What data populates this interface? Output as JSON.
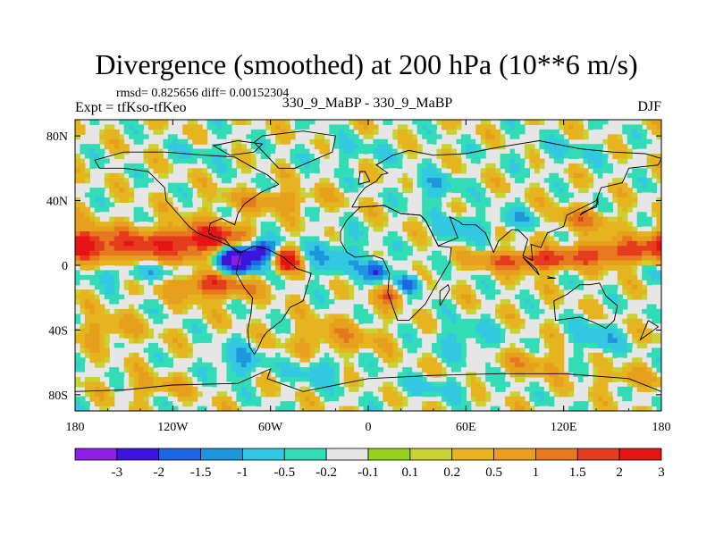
{
  "chart_data": {
    "type": "heatmap",
    "title": "Divergence (smoothed) at 200 hPa (10**6 m/s)",
    "stats_label": "rmsd= 0.825656 diff= 0.00152304",
    "left_label": "Expt = tfKso-tfKeo",
    "center_label": "330_9_MaBP - 330_9_MaBP",
    "right_label": "DJF",
    "xlim": [
      -180,
      180
    ],
    "ylim": [
      -90,
      90
    ],
    "x_ticks": [
      {
        "value": -180,
        "label": "180"
      },
      {
        "value": -120,
        "label": "120W"
      },
      {
        "value": -60,
        "label": "60W"
      },
      {
        "value": 0,
        "label": "0"
      },
      {
        "value": 60,
        "label": "60E"
      },
      {
        "value": 120,
        "label": "120E"
      },
      {
        "value": 180,
        "label": "180"
      }
    ],
    "y_ticks": [
      {
        "value": 80,
        "label": "80N"
      },
      {
        "value": 40,
        "label": "40N"
      },
      {
        "value": 0,
        "label": "0"
      },
      {
        "value": -40,
        "label": "40S"
      },
      {
        "value": -80,
        "label": "80S"
      }
    ],
    "colorbar": {
      "colors": [
        "#8c1ee6",
        "#3c14dc",
        "#1e64e6",
        "#1e96dc",
        "#32c8e1",
        "#32dcb4",
        "#e6e6e6",
        "#96d21e",
        "#c8d232",
        "#e6b41e",
        "#e6a01e",
        "#e6781e",
        "#e63c1e",
        "#e61414"
      ],
      "labels": [
        "-3",
        "-2",
        "-1.5",
        "-1",
        "-0.5",
        "-0.2",
        "-0.1",
        "0.1",
        "0.2",
        "0.5",
        "1",
        "1.5",
        "2",
        "3"
      ],
      "levels": [
        -3,
        -2,
        -1.5,
        -1,
        -0.5,
        -0.2,
        -0.1,
        0.1,
        0.2,
        0.5,
        1,
        1.5,
        2,
        3
      ]
    },
    "field_blobs": [
      {
        "lon": -140,
        "lat": 12,
        "rx": 40,
        "ry": 10,
        "amp": 1.8
      },
      {
        "lon": -175,
        "lat": 14,
        "rx": 14,
        "ry": 8,
        "amp": 1.7
      },
      {
        "lon": -95,
        "lat": 17,
        "rx": 22,
        "ry": 9,
        "amp": 2.2
      },
      {
        "lon": -80,
        "lat": 4,
        "rx": 14,
        "ry": 10,
        "amp": -3.2
      },
      {
        "lon": -65,
        "lat": 10,
        "rx": 8,
        "ry": 7,
        "amp": -2.0
      },
      {
        "lon": -50,
        "lat": 3,
        "rx": 8,
        "ry": 7,
        "amp": 2.8
      },
      {
        "lon": -95,
        "lat": -12,
        "rx": 25,
        "ry": 8,
        "amp": 2.0
      },
      {
        "lon": -140,
        "lat": -5,
        "rx": 35,
        "ry": 6,
        "amp": -0.8
      },
      {
        "lon": -20,
        "lat": 5,
        "rx": 22,
        "ry": 12,
        "amp": -0.9
      },
      {
        "lon": 5,
        "lat": -3,
        "rx": 7,
        "ry": 6,
        "amp": -2.2
      },
      {
        "lon": 25,
        "lat": -12,
        "rx": 8,
        "ry": 6,
        "amp": -1.9
      },
      {
        "lon": 15,
        "lat": -18,
        "rx": 8,
        "ry": 6,
        "amp": 1.8
      },
      {
        "lon": 100,
        "lat": 3,
        "rx": 30,
        "ry": 6,
        "amp": 2.0
      },
      {
        "lon": 150,
        "lat": 8,
        "rx": 25,
        "ry": 7,
        "amp": 1.7
      },
      {
        "lon": 55,
        "lat": 22,
        "rx": 14,
        "ry": 10,
        "amp": -0.7
      },
      {
        "lon": 130,
        "lat": 28,
        "rx": 20,
        "ry": 7,
        "amp": 1.0
      },
      {
        "lon": 90,
        "lat": 28,
        "rx": 18,
        "ry": 6,
        "amp": -0.8
      },
      {
        "lon": -60,
        "lat": 40,
        "rx": 30,
        "ry": 6,
        "amp": 0.9
      },
      {
        "lon": 40,
        "lat": 48,
        "rx": 15,
        "ry": 10,
        "amp": -0.8
      },
      {
        "lon": -100,
        "lat": 70,
        "rx": 20,
        "ry": 7,
        "amp": -0.4
      },
      {
        "lon": -10,
        "lat": 70,
        "rx": 30,
        "ry": 8,
        "amp": -0.4
      },
      {
        "lon": 120,
        "lat": 70,
        "rx": 30,
        "ry": 8,
        "amp": -0.4
      },
      {
        "lon": -20,
        "lat": -45,
        "rx": 25,
        "ry": 10,
        "amp": 0.8
      },
      {
        "lon": 60,
        "lat": -45,
        "rx": 20,
        "ry": 10,
        "amp": -0.7
      },
      {
        "lon": -160,
        "lat": -40,
        "rx": 20,
        "ry": 8,
        "amp": 0.7
      },
      {
        "lon": -80,
        "lat": -60,
        "rx": 15,
        "ry": 10,
        "amp": -1.0
      },
      {
        "lon": -30,
        "lat": -65,
        "rx": 15,
        "ry": 8,
        "amp": -0.9
      },
      {
        "lon": 100,
        "lat": -60,
        "rx": 20,
        "ry": 8,
        "amp": 0.7
      },
      {
        "lon": 140,
        "lat": -45,
        "rx": 15,
        "ry": 10,
        "amp": -0.9
      },
      {
        "lon": 40,
        "lat": -75,
        "rx": 25,
        "ry": 6,
        "amp": -0.6
      },
      {
        "lon": -130,
        "lat": -75,
        "rx": 20,
        "ry": 6,
        "amp": 0.6
      },
      {
        "lon": 160,
        "lat": -70,
        "rx": 20,
        "ry": 6,
        "amp": 0.6
      }
    ],
    "coastlines": [
      [
        [
          -168,
          65
        ],
        [
          -150,
          70
        ],
        [
          -125,
          70
        ],
        [
          -100,
          68
        ],
        [
          -82,
          67
        ],
        [
          -70,
          60
        ],
        [
          -62,
          56
        ],
        [
          -55,
          50
        ],
        [
          -66,
          45
        ],
        [
          -76,
          38
        ],
        [
          -80,
          32
        ],
        [
          -82,
          25
        ],
        [
          -90,
          29
        ],
        [
          -97,
          26
        ],
        [
          -98,
          20
        ],
        [
          -95,
          18
        ],
        [
          -88,
          16
        ],
        [
          -84,
          11
        ],
        [
          -80,
          8
        ],
        [
          -78,
          8
        ],
        [
          -85,
          12
        ],
        [
          -92,
          15
        ],
        [
          -105,
          20
        ],
        [
          -110,
          24
        ],
        [
          -117,
          32
        ],
        [
          -124,
          40
        ],
        [
          -125,
          48
        ],
        [
          -135,
          58
        ],
        [
          -150,
          60
        ],
        [
          -165,
          60
        ],
        [
          -168,
          65
        ]
      ],
      [
        [
          -78,
          8
        ],
        [
          -70,
          12
        ],
        [
          -62,
          10
        ],
        [
          -52,
          5
        ],
        [
          -44,
          -2
        ],
        [
          -35,
          -5
        ],
        [
          -38,
          -15
        ],
        [
          -40,
          -22
        ],
        [
          -48,
          -26
        ],
        [
          -53,
          -34
        ],
        [
          -58,
          -38
        ],
        [
          -62,
          -41
        ],
        [
          -65,
          -45
        ],
        [
          -68,
          -52
        ],
        [
          -70,
          -55
        ],
        [
          -73,
          -50
        ],
        [
          -74,
          -40
        ],
        [
          -72,
          -30
        ],
        [
          -71,
          -20
        ],
        [
          -76,
          -14
        ],
        [
          -81,
          -5
        ],
        [
          -80,
          1
        ],
        [
          -78,
          8
        ]
      ],
      [
        [
          -55,
          60
        ],
        [
          -45,
          60
        ],
        [
          -22,
          70
        ],
        [
          -20,
          80
        ],
        [
          -40,
          83
        ],
        [
          -65,
          80
        ],
        [
          -70,
          76
        ],
        [
          -55,
          60
        ]
      ],
      [
        [
          -10,
          36
        ],
        [
          -6,
          43
        ],
        [
          -2,
          48
        ],
        [
          5,
          52
        ],
        [
          8,
          56
        ],
        [
          12,
          57
        ],
        [
          5,
          62
        ],
        [
          15,
          68
        ],
        [
          25,
          71
        ],
        [
          40,
          68
        ],
        [
          60,
          69
        ],
        [
          80,
          73
        ],
        [
          105,
          77
        ],
        [
          130,
          72
        ],
        [
          150,
          70
        ],
        [
          170,
          69
        ],
        [
          180,
          66
        ],
        [
          178,
          62
        ],
        [
          160,
          60
        ],
        [
          156,
          51
        ],
        [
          143,
          48
        ],
        [
          140,
          40
        ],
        [
          130,
          35
        ],
        [
          122,
          31
        ],
        [
          120,
          24
        ],
        [
          110,
          20
        ],
        [
          106,
          11
        ],
        [
          100,
          13
        ],
        [
          101,
          3
        ],
        [
          95,
          6
        ],
        [
          98,
          16
        ],
        [
          92,
          22
        ],
        [
          88,
          22
        ],
        [
          80,
          15
        ],
        [
          77,
          8
        ],
        [
          72,
          20
        ],
        [
          66,
          25
        ],
        [
          58,
          25
        ],
        [
          56,
          27
        ],
        [
          50,
          30
        ],
        [
          55,
          17
        ],
        [
          45,
          13
        ],
        [
          43,
          12
        ],
        [
          35,
          28
        ],
        [
          32,
          31
        ],
        [
          20,
          32
        ],
        [
          10,
          37
        ],
        [
          -5,
          36
        ],
        [
          -10,
          36
        ]
      ],
      [
        [
          -17,
          15
        ],
        [
          -17,
          21
        ],
        [
          -13,
          28
        ],
        [
          -5,
          36
        ],
        [
          10,
          37
        ],
        [
          20,
          32
        ],
        [
          32,
          31
        ],
        [
          35,
          28
        ],
        [
          43,
          12
        ],
        [
          51,
          11
        ],
        [
          50,
          2
        ],
        [
          40,
          -15
        ],
        [
          35,
          -24
        ],
        [
          33,
          -26
        ],
        [
          25,
          -34
        ],
        [
          18,
          -34
        ],
        [
          12,
          -17
        ],
        [
          13,
          -5
        ],
        [
          9,
          4
        ],
        [
          3,
          6
        ],
        [
          -8,
          5
        ],
        [
          -13,
          8
        ],
        [
          -17,
          15
        ]
      ],
      [
        [
          44,
          -25
        ],
        [
          50,
          -15
        ],
        [
          49,
          -12
        ],
        [
          44,
          -16
        ],
        [
          44,
          -25
        ]
      ],
      [
        [
          114,
          -22
        ],
        [
          122,
          -18
        ],
        [
          130,
          -12
        ],
        [
          136,
          -12
        ],
        [
          142,
          -11
        ],
        [
          146,
          -19
        ],
        [
          153,
          -25
        ],
        [
          151,
          -34
        ],
        [
          146,
          -39
        ],
        [
          138,
          -35
        ],
        [
          130,
          -32
        ],
        [
          115,
          -34
        ],
        [
          114,
          -22
        ]
      ],
      [
        [
          -180,
          -78
        ],
        [
          -150,
          -77
        ],
        [
          -120,
          -74
        ],
        [
          -80,
          -73
        ],
        [
          -60,
          -64
        ],
        [
          -62,
          -70
        ],
        [
          -40,
          -78
        ],
        [
          0,
          -70
        ],
        [
          40,
          -68
        ],
        [
          80,
          -67
        ],
        [
          120,
          -67
        ],
        [
          160,
          -70
        ],
        [
          180,
          -78
        ]
      ],
      [
        [
          -6,
          50
        ],
        [
          -5,
          58
        ],
        [
          -2,
          58
        ],
        [
          1,
          52
        ],
        [
          -6,
          50
        ]
      ],
      [
        [
          130,
          31
        ],
        [
          135,
          34
        ],
        [
          141,
          38
        ],
        [
          141,
          43
        ],
        [
          140,
          36
        ],
        [
          132,
          33
        ],
        [
          130,
          31
        ]
      ],
      [
        [
          95,
          5
        ],
        [
          105,
          -6
        ],
        [
          103,
          -2
        ],
        [
          95,
          5
        ]
      ],
      [
        [
          110,
          -8
        ],
        [
          115,
          -8
        ],
        [
          110,
          -7
        ]
      ],
      [
        [
          -85,
          68
        ],
        [
          -70,
          70
        ],
        [
          -65,
          75
        ],
        [
          -80,
          77
        ],
        [
          -95,
          74
        ],
        [
          -85,
          68
        ]
      ],
      [
        [
          172,
          -34
        ],
        [
          178,
          -38
        ],
        [
          174,
          -41
        ],
        [
          167,
          -46
        ],
        [
          172,
          -34
        ]
      ]
    ]
  }
}
